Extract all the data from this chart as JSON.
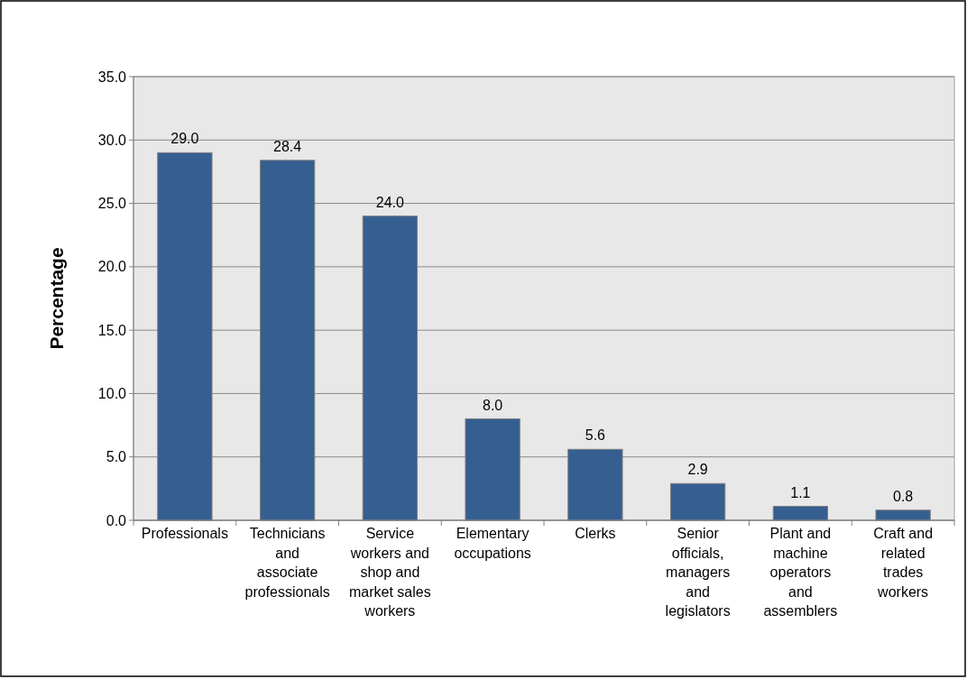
{
  "chart_data": {
    "type": "bar",
    "ylabel": "Percentage",
    "categories": [
      "Professionals",
      "Technicians and associate professionals",
      "Service workers and shop and market sales workers",
      "Elementary occupations",
      "Clerks",
      "Senior officials, managers and legislators",
      "Plant and machine operators and assemblers",
      "Craft and related trades workers"
    ],
    "values": [
      29.0,
      28.4,
      24.0,
      8.0,
      5.6,
      2.9,
      1.1,
      0.8
    ],
    "value_labels": [
      "29.0",
      "28.4",
      "24.0",
      "8.0",
      "5.6",
      "2.9",
      "1.1",
      "0.8"
    ],
    "color": "#355e91",
    "ylim": [
      0,
      35
    ],
    "yticks": [
      {
        "value": 0,
        "label": "0.0"
      },
      {
        "value": 5,
        "label": "5.0"
      },
      {
        "value": 10,
        "label": "10.0"
      },
      {
        "value": 15,
        "label": "15.0"
      },
      {
        "value": 20,
        "label": "20.0"
      },
      {
        "value": 25,
        "label": "25.0"
      },
      {
        "value": 30,
        "label": "30.0"
      },
      {
        "value": 35,
        "label": "35.0"
      }
    ],
    "grid": "y"
  }
}
